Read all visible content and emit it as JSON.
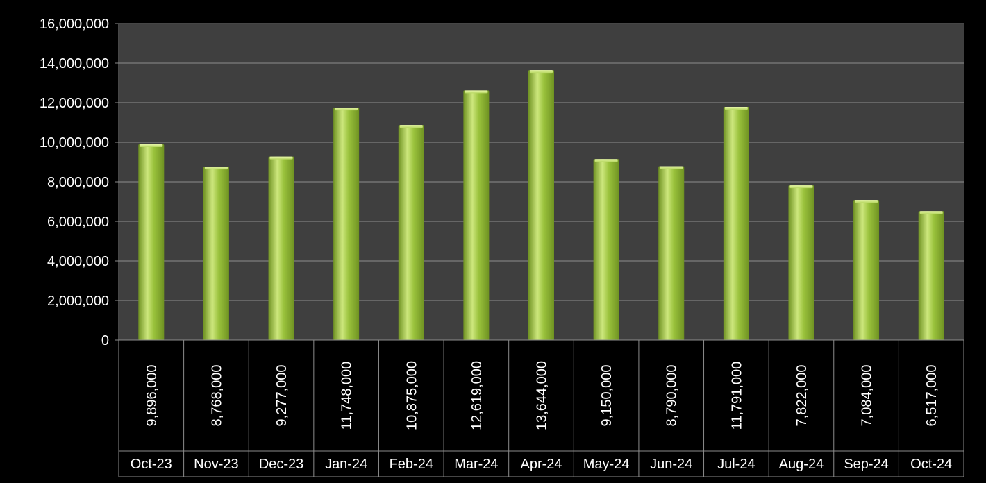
{
  "chart_data": {
    "type": "bar",
    "title": "",
    "xlabel": "",
    "ylabel": "",
    "categories": [
      "Oct-23",
      "Nov-23",
      "Dec-23",
      "Jan-24",
      "Feb-24",
      "Mar-24",
      "Apr-24",
      "May-24",
      "Jun-24",
      "Jul-24",
      "Aug-24",
      "Sep-24",
      "Oct-24"
    ],
    "values": [
      9896000,
      8768000,
      9277000,
      11748000,
      10875000,
      12619000,
      13644000,
      9150000,
      8790000,
      11791000,
      7822000,
      7084000,
      6517000
    ],
    "value_labels": [
      "9,896,000",
      "8,768,000",
      "9,277,000",
      "11,748,000",
      "10,875,000",
      "12,619,000",
      "13,644,000",
      "9,150,000",
      "8,790,000",
      "11,791,000",
      "7,822,000",
      "7,084,000",
      "6,517,000"
    ],
    "yticks": [
      "0",
      "2,000,000",
      "4,000,000",
      "6,000,000",
      "8,000,000",
      "10,000,000",
      "12,000,000",
      "14,000,000",
      "16,000,000"
    ],
    "ylim": [
      0,
      16000000
    ],
    "grid": true,
    "data_table": true,
    "colors": {
      "background": "#000000",
      "plot_area": "#3f3f3f",
      "gridline": "#8c8c8c",
      "bar": "#9ac23c",
      "bar_light": "#cde77d",
      "bar_dark": "#6f9222",
      "text": "#ffffff"
    }
  }
}
